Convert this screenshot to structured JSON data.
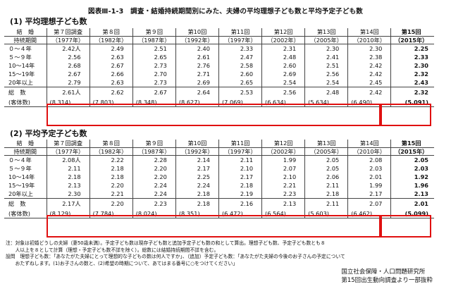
{
  "title": "図表Ⅲ-1-3　調査・結婚持続期間別にみた、夫婦の平均理想子ども数と平均予定子ども数",
  "section1": "(1)  平均理想子ども数",
  "section2": "(2)  平均予定子ども数",
  "header": {
    "row_label_1": "結　婚",
    "row_label_2": "持続期間",
    "surveys": [
      {
        "name": "第７回調査",
        "year": "（1977年）"
      },
      {
        "name": "第８回",
        "year": "（1982年）"
      },
      {
        "name": "第９回",
        "year": "（1987年）"
      },
      {
        "name": "第10回",
        "year": "（1992年）"
      },
      {
        "name": "第11回",
        "year": "（1997年）"
      },
      {
        "name": "第12回",
        "year": "（2002年）"
      },
      {
        "name": "第13回",
        "year": "（2005年）"
      },
      {
        "name": "第14回",
        "year": "（2010年）"
      },
      {
        "name": "第15回",
        "year": "（2015年）"
      }
    ]
  },
  "table1": {
    "rows": [
      {
        "label": "０～４年",
        "values": [
          "2.42人",
          "2.49",
          "2.51",
          "2.40",
          "2.33",
          "2.31",
          "2.30",
          "2.30",
          "2.25"
        ]
      },
      {
        "label": "５～９年",
        "values": [
          "2.56",
          "2.63",
          "2.65",
          "2.61",
          "2.47",
          "2.48",
          "2.41",
          "2.38",
          "2.33"
        ]
      },
      {
        "label": "10～14年",
        "values": [
          "2.68",
          "2.67",
          "2.73",
          "2.76",
          "2.58",
          "2.60",
          "2.51",
          "2.42",
          "2.30"
        ]
      },
      {
        "label": "15～19年",
        "values": [
          "2.67",
          "2.66",
          "2.70",
          "2.71",
          "2.60",
          "2.69",
          "2.56",
          "2.42",
          "2.32"
        ]
      },
      {
        "label": "20年以上",
        "values": [
          "2.79",
          "2.63",
          "2.73",
          "2.69",
          "2.65",
          "2.54",
          "2.54",
          "2.45",
          "2.43"
        ]
      }
    ],
    "total_label": "総　数",
    "total": [
      "2.61人",
      "2.62",
      "2.67",
      "2.64",
      "2.53",
      "2.56",
      "2.48",
      "2.42",
      "2.32"
    ],
    "count_label": "(客体数)",
    "counts": [
      "(8,314)",
      "(7,803)",
      "(8,348)",
      "(8,627)",
      "(7,069)",
      "(6,634)",
      "(5,634)",
      "(6,490)",
      "(5,091)"
    ]
  },
  "table2": {
    "rows": [
      {
        "label": "０～４年",
        "values": [
          "2.08人",
          "2.22",
          "2.28",
          "2.14",
          "2.11",
          "1.99",
          "2.05",
          "2.08",
          "2.05"
        ]
      },
      {
        "label": "５～９年",
        "values": [
          "2.11",
          "2.18",
          "2.20",
          "2.17",
          "2.10",
          "2.07",
          "2.05",
          "2.03",
          "2.03"
        ]
      },
      {
        "label": "10～14年",
        "values": [
          "2.18",
          "2.18",
          "2.20",
          "2.25",
          "2.17",
          "2.10",
          "2.06",
          "2.01",
          "1.92"
        ]
      },
      {
        "label": "15～19年",
        "values": [
          "2.13",
          "2.20",
          "2.24",
          "2.24",
          "2.18",
          "2.21",
          "2.11",
          "1.99",
          "1.96"
        ]
      },
      {
        "label": "20年以上",
        "values": [
          "2.30",
          "2.21",
          "2.24",
          "2.18",
          "2.19",
          "2.23",
          "2.18",
          "2.17",
          "2.13"
        ]
      }
    ],
    "total_label": "総　数",
    "total": [
      "2.17人",
      "2.20",
      "2.23",
      "2.18",
      "2.16",
      "2.13",
      "2.11",
      "2.07",
      "2.01"
    ],
    "count_label": "(客体数)",
    "counts": [
      "(8,129)",
      "(7,784)",
      "(8,024)",
      "(8,351)",
      "(6,472)",
      "(6,564)",
      "(5,603)",
      "(6,462)",
      "(5,099)"
    ]
  },
  "notes": [
    "注：対象は初婚どうしの夫婦（妻50歳未満）。予定子ども数は現存子ども数と追加予定子ども数の和として算出。理想子ども数、予定子ども数とも８",
    "　　人以上を８として計算（理想・予定子ども数不詳を除く）。総数には結婚持続期間不詳を含む。",
    "設問　理想子ども数：「あなたがた夫婦にとって理想的な子どもの数は何人ですか」、（追加）予定子ども数：「あなたがた夫婦の今後のお子さんの予定について",
    "　　おたずねします。(1)お子さんの数と、(2)希望の時期について、あてはまる番号に○をつけてください」"
  ],
  "source": [
    "国立社会保障・人口問題研究所",
    "第15回出生動向調査より一部抜粋"
  ],
  "colors": {
    "highlight": "#e01010"
  }
}
